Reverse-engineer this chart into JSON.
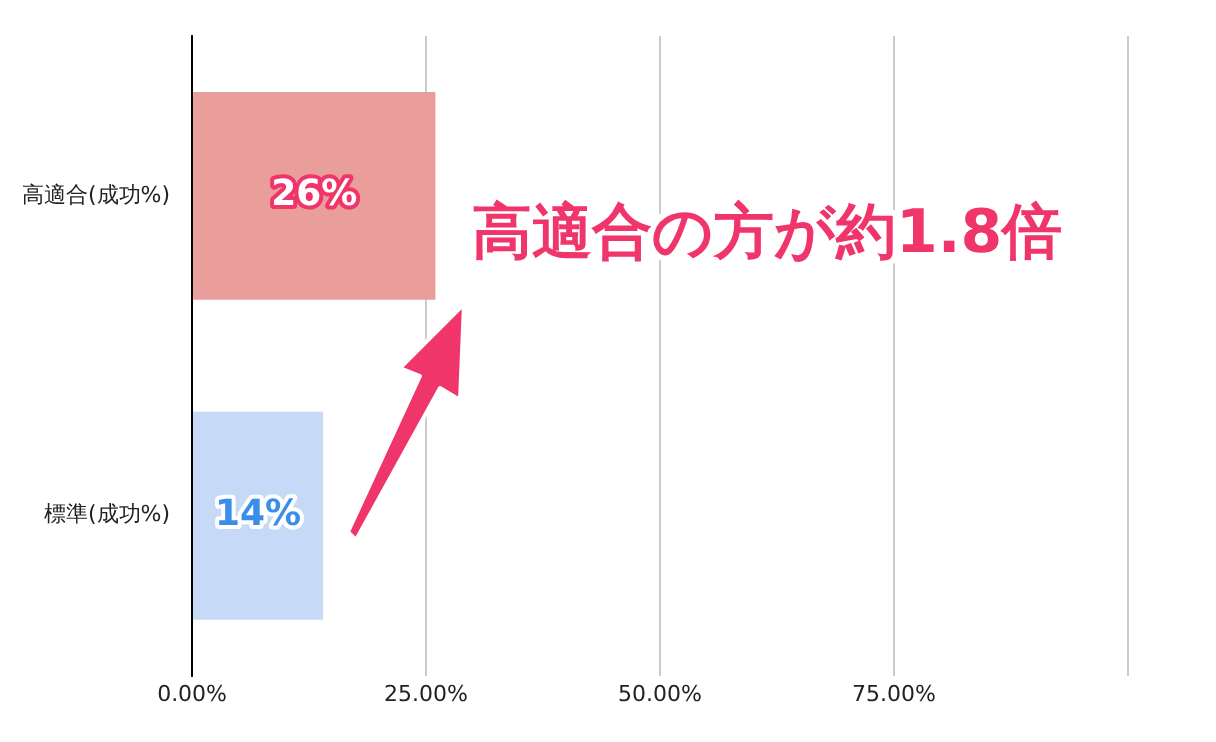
{
  "chart_data": {
    "type": "bar",
    "orientation": "horizontal",
    "categories": [
      "高適合(成功%)",
      "標準(成功%)"
    ],
    "values": [
      26,
      14
    ],
    "colors": [
      "#e99e9c",
      "#c6d9f7"
    ],
    "value_labels": [
      "26%",
      "14%"
    ],
    "xlim": [
      0,
      100
    ],
    "xticks": [
      {
        "value": 0,
        "label": "0.00%"
      },
      {
        "value": 25,
        "label": "25.00%"
      },
      {
        "value": 50,
        "label": "50.00%"
      },
      {
        "value": 75,
        "label": "75.00%"
      },
      {
        "value": 100,
        "label": null
      }
    ],
    "grid": "x",
    "legend": false,
    "annotations": [
      "高適合の方が約1.8倍"
    ]
  }
}
